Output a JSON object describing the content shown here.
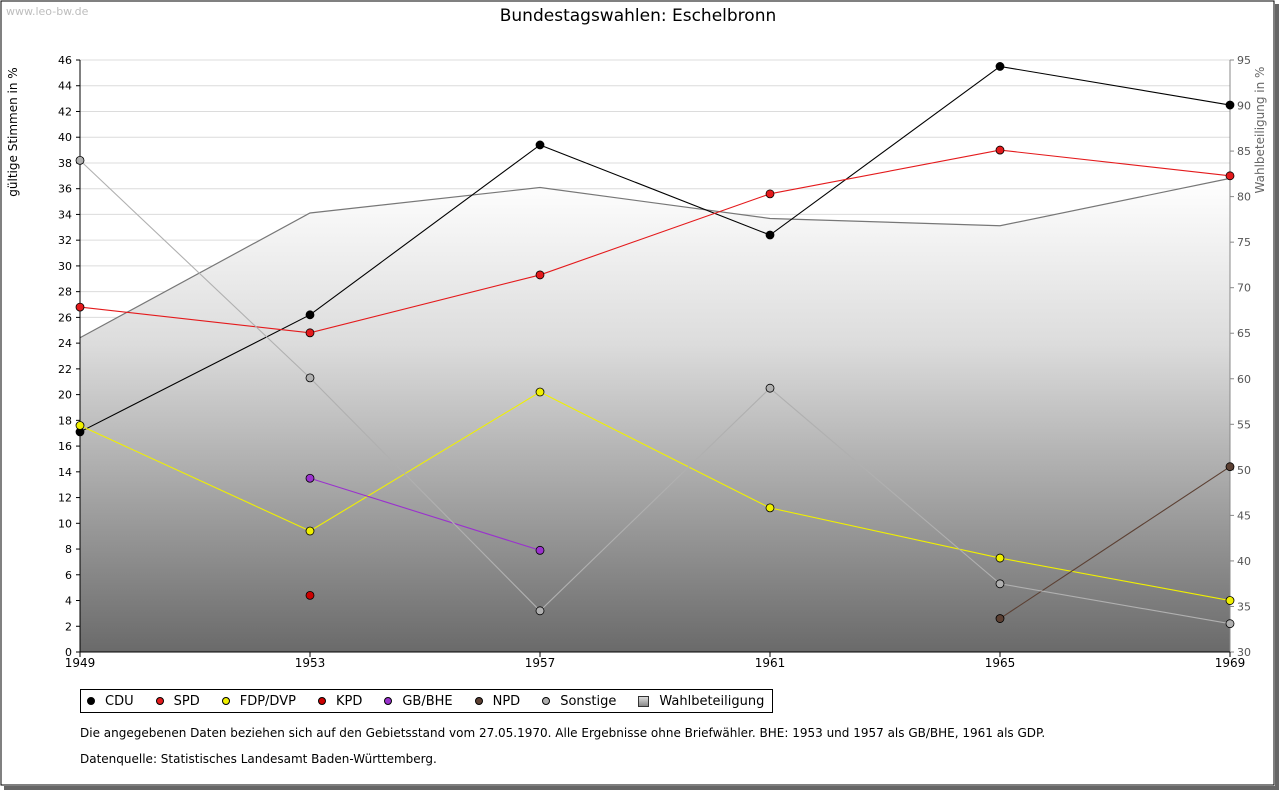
{
  "watermark": "www.leo-bw.de",
  "chart_data": {
    "type": "line",
    "title": "Bundestagswahlen: Eschelbronn",
    "ylabel": "gültige Stimmen in %",
    "y2label": "Wahlbeteiligung in %",
    "x": [
      "1949",
      "1953",
      "1957",
      "1961",
      "1965",
      "1969"
    ],
    "ylim": [
      0,
      46
    ],
    "yticks": [
      0,
      2,
      4,
      6,
      8,
      10,
      12,
      14,
      16,
      18,
      20,
      22,
      24,
      26,
      28,
      30,
      32,
      34,
      36,
      38,
      40,
      42,
      44,
      46
    ],
    "y2lim": [
      30,
      95
    ],
    "y2ticks": [
      30,
      35,
      40,
      45,
      50,
      55,
      60,
      65,
      70,
      75,
      80,
      85,
      90,
      95
    ],
    "grid": true,
    "legend_position": "bottom",
    "series": [
      {
        "name": "CDU",
        "color": "#000000",
        "values": [
          17.1,
          26.2,
          39.4,
          32.4,
          45.5,
          42.5
        ]
      },
      {
        "name": "SPD",
        "color": "#e41a1c",
        "values": [
          26.8,
          24.8,
          29.3,
          35.6,
          39.0,
          37.0
        ]
      },
      {
        "name": "FDP/DVP",
        "color": "#f0f000",
        "values": [
          17.6,
          9.4,
          20.2,
          11.2,
          7.3,
          4.0
        ]
      },
      {
        "name": "KPD",
        "color": "#cc0000",
        "values": [
          null,
          4.4,
          null,
          null,
          null,
          null
        ]
      },
      {
        "name": "GB/BHE",
        "color": "#9a32cd",
        "values": [
          null,
          13.5,
          7.9,
          null,
          null,
          null
        ]
      },
      {
        "name": "NPD",
        "color": "#5c4033",
        "values": [
          null,
          null,
          null,
          null,
          2.6,
          14.4
        ]
      },
      {
        "name": "Sonstige",
        "color": "#b0b0b0",
        "values": [
          38.2,
          21.3,
          3.2,
          20.5,
          5.3,
          2.2
        ]
      }
    ],
    "turnout": {
      "name": "Wahlbeteiligung",
      "axis": "right",
      "values": [
        64.5,
        78.2,
        81.0,
        77.6,
        76.8,
        82.0
      ]
    }
  },
  "notes": {
    "line1": "Die angegebenen Daten beziehen sich auf den Gebietsstand vom 27.05.1970. Alle Ergebnisse ohne Briefwähler. BHE: 1953 und 1957 als GB/BHE, 1961 als GDP.",
    "line2": "Datenquelle: Statistisches Landesamt Baden-Württemberg."
  }
}
